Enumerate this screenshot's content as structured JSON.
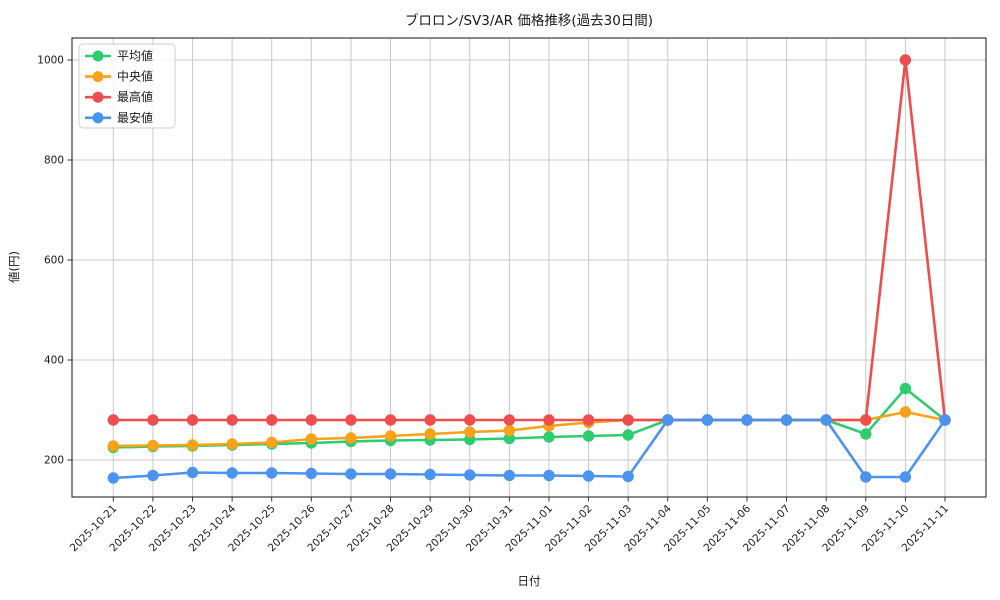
{
  "figure": {
    "background": "#ffffff"
  },
  "chart_data": {
    "type": "line",
    "title": "ブロロン/SV3/AR 価格推移(過去30日間)",
    "xlabel": "日付",
    "ylabel": "値(円)",
    "categories": [
      "2025-10-21",
      "2025-10-22",
      "2025-10-23",
      "2025-10-24",
      "2025-10-25",
      "2025-10-26",
      "2025-10-27",
      "2025-10-28",
      "2025-10-29",
      "2025-10-30",
      "2025-10-31",
      "2025-11-01",
      "2025-11-02",
      "2025-11-03",
      "2025-11-04",
      "2025-11-05",
      "2025-11-06",
      "2025-11-07",
      "2025-11-08",
      "2025-11-09",
      "2025-11-10",
      "2025-11-11"
    ],
    "series": [
      {
        "name": "平均値",
        "color": "#2ecc71",
        "values": [
          225,
          227,
          228,
          230,
          232,
          234,
          237,
          239,
          240,
          241,
          243,
          246,
          248,
          250,
          280,
          280,
          280,
          280,
          280,
          252,
          343,
          280
        ]
      },
      {
        "name": "中央値",
        "color": "#f7a217",
        "values": [
          228,
          229,
          230,
          232,
          235,
          242,
          244,
          248,
          252,
          256,
          259,
          268,
          275,
          280,
          280,
          280,
          280,
          280,
          280,
          280,
          296,
          280
        ]
      },
      {
        "name": "最高値",
        "color": "#ef4d4d",
        "values": [
          280,
          280,
          280,
          280,
          280,
          280,
          280,
          280,
          280,
          280,
          280,
          280,
          280,
          280,
          280,
          280,
          280,
          280,
          280,
          280,
          1000,
          280
        ]
      },
      {
        "name": "最安値",
        "color": "#4b93f1",
        "values": [
          164,
          169,
          175,
          174,
          174,
          173,
          172,
          172,
          171,
          170,
          169,
          169,
          168,
          167,
          280,
          280,
          280,
          280,
          280,
          166,
          166,
          280
        ]
      }
    ],
    "yticks": [
      200,
      400,
      600,
      800,
      1000
    ],
    "ylim": [
      126,
      1044
    ],
    "grid": true,
    "grid_color": "#c9c9c9",
    "axis_color": "#262626",
    "legend_position": "upper-left"
  }
}
